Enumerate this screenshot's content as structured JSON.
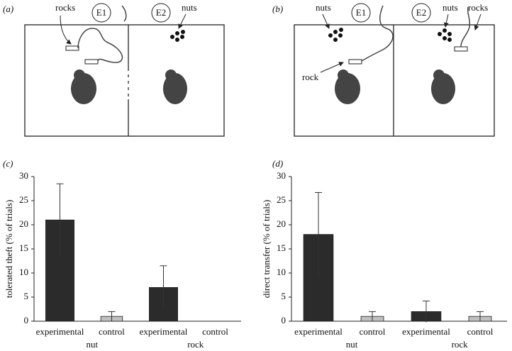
{
  "diagrams": [
    {
      "label": "(a)",
      "texts": [
        "rocks",
        "E1",
        "E2",
        "nuts"
      ]
    },
    {
      "label": "(b)",
      "texts": [
        "nuts",
        "E1",
        "E2",
        "nuts",
        "rocks",
        "rock"
      ]
    }
  ],
  "chart_data": [
    {
      "type": "bar",
      "panel_label": "(c)",
      "ylabel": "tolerated theft (% of trials)",
      "categories": [
        "experimental",
        "control",
        "experimental",
        "control"
      ],
      "groups": [
        "nut",
        "rock"
      ],
      "values": [
        21,
        1,
        7,
        0
      ],
      "errors": [
        7.5,
        1,
        4.5,
        null
      ],
      "colors": [
        "#2b2b2b",
        "#c0c0c0",
        "#2b2b2b",
        "#c0c0c0"
      ],
      "ylim": [
        0,
        30
      ],
      "yticks": [
        0,
        5,
        10,
        15,
        20,
        25,
        30
      ]
    },
    {
      "type": "bar",
      "panel_label": "(d)",
      "ylabel": "direct transfer (% of trials)",
      "categories": [
        "experimental",
        "control",
        "experimental",
        "control"
      ],
      "groups": [
        "nut",
        "rock"
      ],
      "values": [
        18,
        1,
        2,
        1
      ],
      "errors": [
        8.7,
        1,
        2.2,
        1
      ],
      "colors": [
        "#2b2b2b",
        "#c0c0c0",
        "#2b2b2b",
        "#c0c0c0"
      ],
      "ylim": [
        0,
        30
      ],
      "yticks": [
        0,
        5,
        10,
        15,
        20,
        25,
        30
      ]
    }
  ]
}
